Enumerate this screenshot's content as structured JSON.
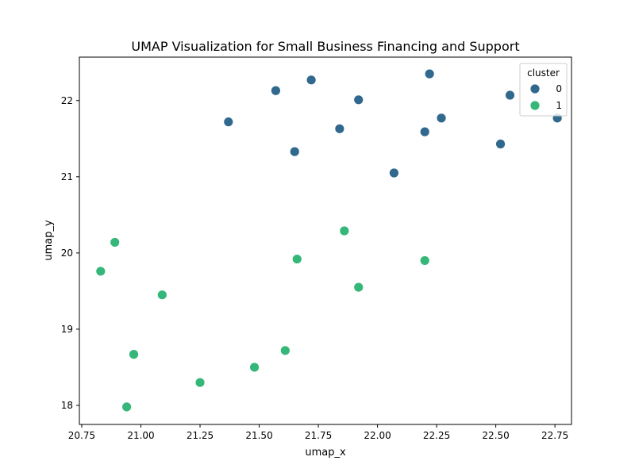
{
  "chart_data": {
    "type": "scatter",
    "title": "UMAP Visualization for Small Business Financing and Support",
    "xlabel": "umap_x",
    "ylabel": "umap_y",
    "xlim": [
      20.74,
      22.82
    ],
    "ylim": [
      17.75,
      22.57
    ],
    "xticks": [
      20.75,
      21.0,
      21.25,
      21.5,
      21.75,
      22.0,
      22.25,
      22.5,
      22.75
    ],
    "xtick_labels": [
      "20.75",
      "21.00",
      "21.25",
      "21.50",
      "21.75",
      "22.00",
      "22.25",
      "22.50",
      "22.75"
    ],
    "yticks": [
      18,
      19,
      20,
      21,
      22
    ],
    "ytick_labels": [
      "18",
      "19",
      "20",
      "21",
      "22"
    ],
    "grid": false,
    "legend": {
      "title": "cluster",
      "placement": "top-right"
    },
    "series": [
      {
        "name": "0",
        "color": "#31688e",
        "points": [
          {
            "x": 21.37,
            "y": 21.72
          },
          {
            "x": 21.57,
            "y": 22.13
          },
          {
            "x": 21.65,
            "y": 21.33
          },
          {
            "x": 21.72,
            "y": 22.27
          },
          {
            "x": 21.84,
            "y": 21.63
          },
          {
            "x": 21.92,
            "y": 22.01
          },
          {
            "x": 22.07,
            "y": 21.05
          },
          {
            "x": 22.2,
            "y": 21.59
          },
          {
            "x": 22.22,
            "y": 22.35
          },
          {
            "x": 22.27,
            "y": 21.77
          },
          {
            "x": 22.52,
            "y": 21.43
          },
          {
            "x": 22.56,
            "y": 22.07
          },
          {
            "x": 22.76,
            "y": 21.77
          }
        ]
      },
      {
        "name": "1",
        "color": "#35b779",
        "points": [
          {
            "x": 20.83,
            "y": 19.76
          },
          {
            "x": 20.89,
            "y": 20.14
          },
          {
            "x": 20.94,
            "y": 17.98
          },
          {
            "x": 20.97,
            "y": 18.67
          },
          {
            "x": 21.09,
            "y": 19.45
          },
          {
            "x": 21.25,
            "y": 18.3
          },
          {
            "x": 21.48,
            "y": 18.5
          },
          {
            "x": 21.61,
            "y": 18.72
          },
          {
            "x": 21.66,
            "y": 19.92
          },
          {
            "x": 21.86,
            "y": 20.29
          },
          {
            "x": 21.92,
            "y": 19.55
          },
          {
            "x": 22.2,
            "y": 19.9
          }
        ]
      }
    ]
  }
}
